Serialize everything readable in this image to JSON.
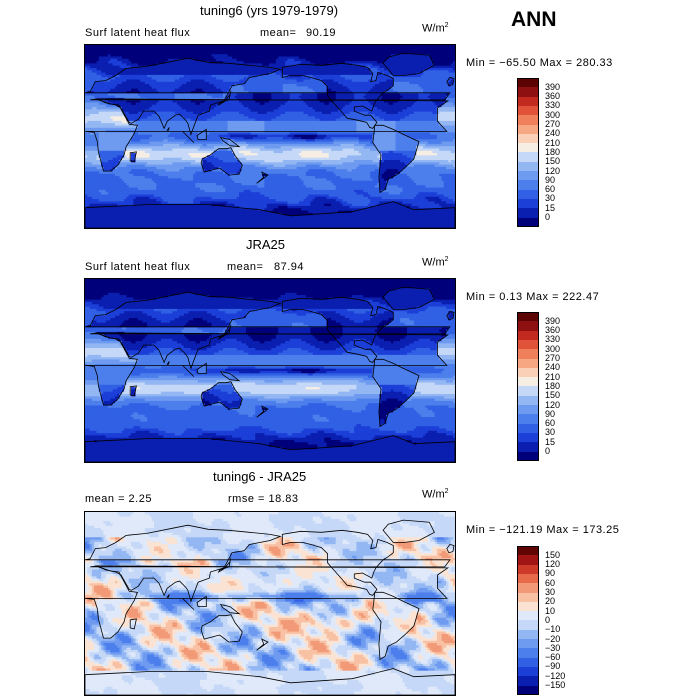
{
  "season": "ANN",
  "panels": [
    {
      "title": "tuning6 (yrs 1979-1979)",
      "field": "Surf latent heat flux",
      "mean_label": "mean=",
      "mean": "90.19",
      "units": "W/m",
      "units_exp": "2",
      "minmax": "Min = −65.50 Max = 280.33"
    },
    {
      "title": "JRA25",
      "field": "Surf latent heat flux",
      "mean_label": "mean=",
      "mean": "87.94",
      "units": "W/m",
      "units_exp": "2",
      "minmax": "Min =   0.13 Max = 222.47"
    },
    {
      "title": "tuning6 - JRA25",
      "mean_text": "mean =    2.25",
      "rmse_text": "rmse =   18.83",
      "units": "W/m",
      "units_exp": "2",
      "minmax": "Min = −121.19 Max = 173.25"
    }
  ],
  "chart_data": [
    {
      "type": "heatmap",
      "title": "tuning6 (yrs 1979-1979)",
      "field": "Surf latent heat flux",
      "units": "W/m2",
      "mean": 90.19,
      "min": -65.5,
      "max": 280.33,
      "colorbar": {
        "levels": [
          0,
          15,
          30,
          60,
          90,
          120,
          150,
          180,
          210,
          240,
          270,
          300,
          330,
          360,
          390
        ],
        "labels": [
          "0",
          "15",
          "30",
          "60",
          "90",
          "120",
          "150",
          "180",
          "210",
          "240",
          "270",
          "300",
          "330",
          "360",
          "390"
        ],
        "colors": [
          "#00007a",
          "#0a1fb0",
          "#1c3fd8",
          "#3160e4",
          "#4d7fec",
          "#6e9af0",
          "#93b7f3",
          "#c6d8f7",
          "#f6eee3",
          "#fad1b6",
          "#f7a882",
          "#f07f5c",
          "#e1523a",
          "#c22a1f",
          "#8e1010",
          "#5c0404"
        ]
      }
    },
    {
      "type": "heatmap",
      "title": "JRA25",
      "field": "Surf latent heat flux",
      "units": "W/m2",
      "mean": 87.94,
      "min": 0.13,
      "max": 222.47,
      "colorbar": {
        "levels": [
          0,
          15,
          30,
          60,
          90,
          120,
          150,
          180,
          210,
          240,
          270,
          300,
          330,
          360,
          390
        ],
        "labels": [
          "0",
          "15",
          "30",
          "60",
          "90",
          "120",
          "150",
          "180",
          "210",
          "240",
          "270",
          "300",
          "330",
          "360",
          "390"
        ],
        "colors": [
          "#00007a",
          "#0a1fb0",
          "#1c3fd8",
          "#3160e4",
          "#4d7fec",
          "#6e9af0",
          "#93b7f3",
          "#c6d8f7",
          "#f6eee3",
          "#fad1b6",
          "#f7a882",
          "#f07f5c",
          "#e1523a",
          "#c22a1f",
          "#8e1010",
          "#5c0404"
        ]
      }
    },
    {
      "type": "heatmap",
      "title": "tuning6 - JRA25",
      "units": "W/m2",
      "mean": 2.25,
      "rmse": 18.83,
      "min": -121.19,
      "max": 173.25,
      "colorbar": {
        "levels": [
          -150,
          -120,
          -90,
          -60,
          -30,
          -20,
          -10,
          0,
          10,
          20,
          30,
          60,
          90,
          120,
          150
        ],
        "labels": [
          "−150",
          "−120",
          "−90",
          "−60",
          "−30",
          "−20",
          "−10",
          "0",
          "10",
          "20",
          "30",
          "60",
          "90",
          "120",
          "150"
        ],
        "colors": [
          "#00007a",
          "#0a1fb0",
          "#1c3fd8",
          "#3160e4",
          "#4d7fec",
          "#6e9af0",
          "#93b7f3",
          "#c6d8f7",
          "#dfe9f9",
          "#fbe3d3",
          "#f8c1a4",
          "#f29a77",
          "#e76b4b",
          "#cd3a29",
          "#a01414",
          "#600404"
        ]
      }
    }
  ]
}
